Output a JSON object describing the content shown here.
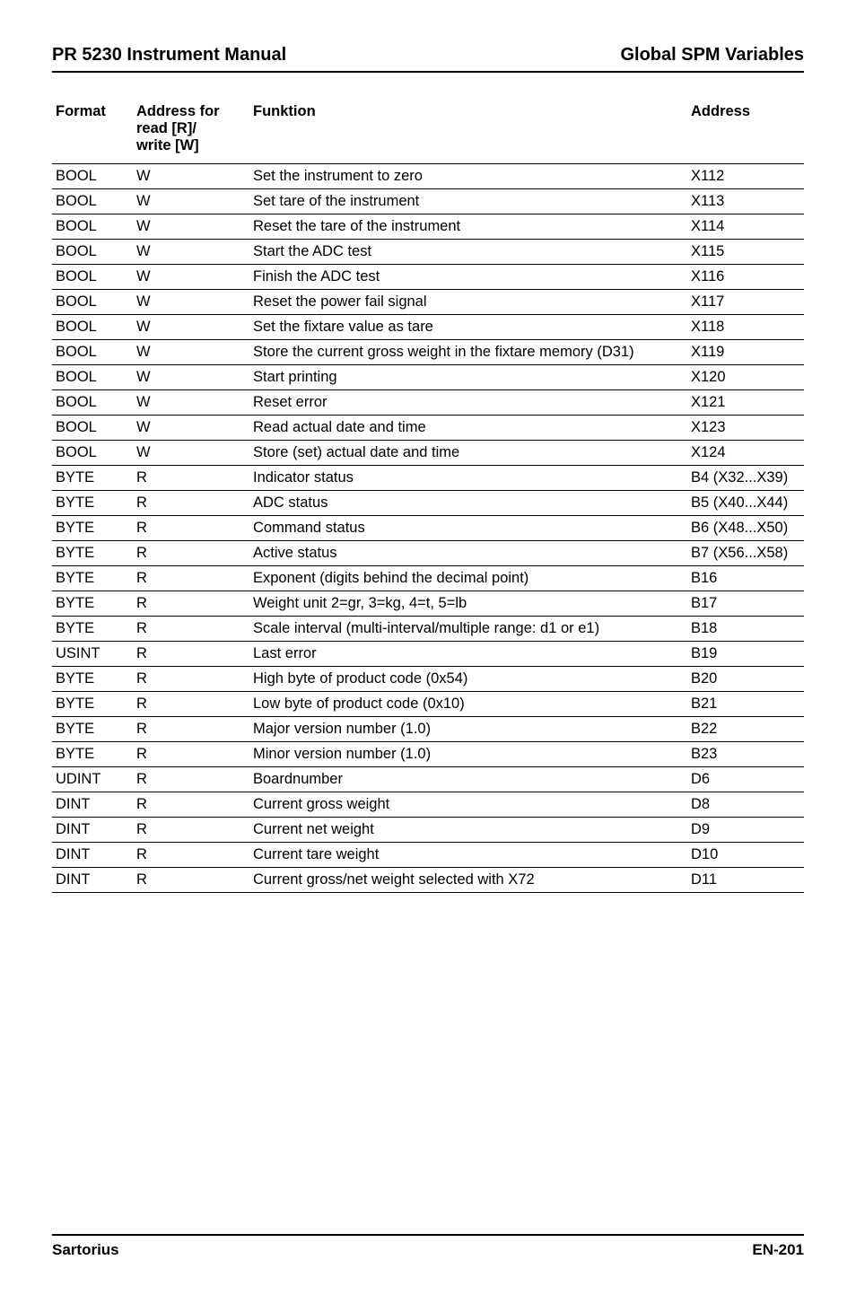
{
  "header": {
    "left": "PR 5230 Instrument Manual",
    "right": "Global SPM Variables"
  },
  "columns": {
    "format": "Format",
    "rw_line1": "Address for",
    "rw_line2": "read [R]/",
    "rw_line3": "write [W]",
    "func": "Funktion",
    "addr": "Address"
  },
  "rows": [
    {
      "f": "BOOL",
      "rw": "W",
      "fn": "Set the instrument to zero",
      "a": "X112",
      "rule": "thin"
    },
    {
      "f": "BOOL",
      "rw": "W",
      "fn": "Set tare of the instrument",
      "a": "X113",
      "rule": "thin"
    },
    {
      "f": "BOOL",
      "rw": "W",
      "fn": "Reset the tare of the instrument",
      "a": "X114",
      "rule": "thin"
    },
    {
      "f": "BOOL",
      "rw": "W",
      "fn": "Start the ADC test",
      "a": "X115",
      "rule": "thin"
    },
    {
      "f": "BOOL",
      "rw": "W",
      "fn": "Finish the ADC test",
      "a": "X116",
      "rule": "thin"
    },
    {
      "f": "BOOL",
      "rw": "W",
      "fn": "Reset the power fail signal",
      "a": "X117",
      "rule": "thin"
    },
    {
      "f": "BOOL",
      "rw": "W",
      "fn": "Set the fixtare value as tare",
      "a": "X118",
      "rule": "thin"
    },
    {
      "f": "BOOL",
      "rw": "W",
      "fn": "Store the current gross weight in the fixtare memory (D31)",
      "a": "X119",
      "rule": "thin"
    },
    {
      "f": "BOOL",
      "rw": "W",
      "fn": "Start printing",
      "a": "X120",
      "rule": "thin"
    },
    {
      "f": "BOOL",
      "rw": "W",
      "fn": "Reset error",
      "a": "X121",
      "rule": "thick"
    },
    {
      "f": "BOOL",
      "rw": "W",
      "fn": "Read actual date and time",
      "a": "X123",
      "rule": "thin"
    },
    {
      "f": "BOOL",
      "rw": "W",
      "fn": "Store (set) actual date and time",
      "a": "X124",
      "rule": "thick"
    },
    {
      "f": "BYTE",
      "rw": "R",
      "fn": "Indicator status",
      "a": "B4 (X32...X39)",
      "rule": "thin"
    },
    {
      "f": "BYTE",
      "rw": "R",
      "fn": "ADC status",
      "a": "B5 (X40...X44)",
      "rule": "thin"
    },
    {
      "f": "BYTE",
      "rw": "R",
      "fn": "Command status",
      "a": "B6 (X48...X50)",
      "rule": "thin"
    },
    {
      "f": "BYTE",
      "rw": "R",
      "fn": "Active status",
      "a": "B7 (X56...X58)",
      "rule": "thick"
    },
    {
      "f": "BYTE",
      "rw": "R",
      "fn": "Exponent (digits behind the decimal point)",
      "a": "B16",
      "rule": "thin"
    },
    {
      "f": "BYTE",
      "rw": "R",
      "fn": "Weight unit 2=gr, 3=kg, 4=t, 5=lb",
      "a": "B17",
      "rule": "thin"
    },
    {
      "f": "BYTE",
      "rw": "R",
      "fn": "Scale interval (multi-interval/multiple range: d1 or e1)",
      "a": "B18",
      "rule": "thin"
    },
    {
      "f": "USINT",
      "rw": "R",
      "fn": "Last error",
      "a": "B19",
      "rule": "thin"
    },
    {
      "f": "BYTE",
      "rw": "R",
      "fn": "High byte of product code (0x54)",
      "a": "B20",
      "rule": "thin"
    },
    {
      "f": "BYTE",
      "rw": "R",
      "fn": "Low byte of product code (0x10)",
      "a": "B21",
      "rule": "thin"
    },
    {
      "f": "BYTE",
      "rw": "R",
      "fn": "Major version number (1.0)",
      "a": "B22",
      "rule": "thin"
    },
    {
      "f": "BYTE",
      "rw": "R",
      "fn": "Minor version number (1.0)",
      "a": "B23",
      "rule": "thick"
    },
    {
      "f": "UDINT",
      "rw": "R",
      "fn": "Boardnumber",
      "a": "D6",
      "rule": "thick"
    },
    {
      "f": "DINT",
      "rw": "R",
      "fn": "Current gross weight",
      "a": "D8",
      "rule": "thin"
    },
    {
      "f": "DINT",
      "rw": "R",
      "fn": "Current net weight",
      "a": "D9",
      "rule": "thin"
    },
    {
      "f": "DINT",
      "rw": "R",
      "fn": "Current tare weight",
      "a": "D10",
      "rule": "thin"
    },
    {
      "f": "DINT",
      "rw": "R",
      "fn": "Current gross/net weight selected with X72",
      "a": "D11",
      "rule": "med"
    }
  ],
  "footer": {
    "left": "Sartorius",
    "right": "EN-201"
  }
}
